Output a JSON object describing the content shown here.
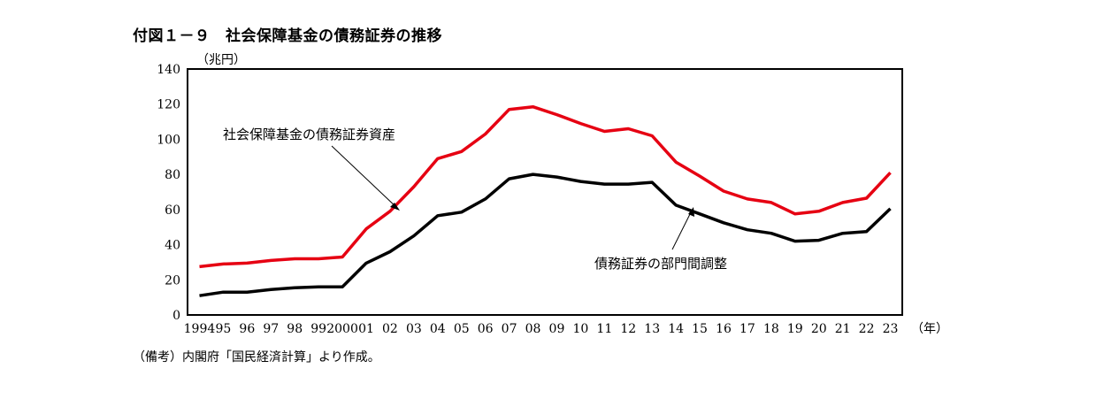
{
  "title": "付図１－９　社会保障基金の債務証券の推移",
  "note": "（備考）内閣府「国民経済計算」より作成。",
  "chart_data": {
    "type": "line",
    "ylabel": "（兆円）",
    "xlabel": "（年）",
    "ylim": [
      0,
      140
    ],
    "yticks": [
      "0",
      "20",
      "40",
      "60",
      "80",
      "100",
      "120",
      "140"
    ],
    "categories": [
      "1994",
      "95",
      "96",
      "97",
      "98",
      "99",
      "2000",
      "01",
      "02",
      "03",
      "04",
      "05",
      "06",
      "07",
      "08",
      "09",
      "10",
      "11",
      "12",
      "13",
      "14",
      "15",
      "16",
      "17",
      "18",
      "19",
      "20",
      "21",
      "22",
      "23"
    ],
    "series": [
      {
        "name": "社会保障基金の債務証券資産",
        "color": "#e60012",
        "values": [
          27.5,
          29,
          29.5,
          31,
          32,
          32,
          33,
          49,
          59,
          73,
          89,
          93,
          103,
          117,
          118.5,
          114,
          109,
          104.5,
          106,
          102,
          87,
          79,
          70.5,
          66,
          64,
          57.5,
          59,
          64,
          66.5,
          81
        ]
      },
      {
        "name": "債務証券の部門間調整",
        "color": "#000000",
        "values": [
          11,
          13,
          13,
          14.5,
          15.5,
          16,
          16,
          29.5,
          36,
          45,
          56.5,
          58.5,
          66,
          77.5,
          80,
          78.5,
          76,
          74.5,
          74.5,
          75.5,
          62.5,
          57.5,
          52.5,
          48.5,
          46.5,
          42,
          42.5,
          46.5,
          47.5,
          60.5
        ]
      }
    ]
  }
}
